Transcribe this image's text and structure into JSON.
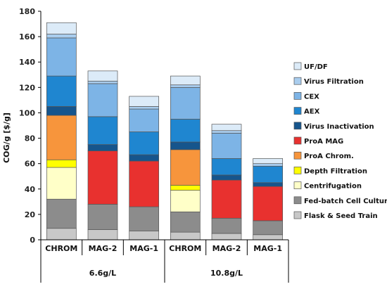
{
  "chart_data": {
    "type": "bar",
    "stacked": true,
    "ylabel": "COG/g [$/g]",
    "ylim": [
      0,
      180
    ],
    "yticks": [
      0,
      20,
      40,
      60,
      80,
      100,
      120,
      140,
      160,
      180
    ],
    "grid": false,
    "legend_position": "right",
    "categories": [
      "CHROM",
      "MAG-2",
      "MAG-1",
      "CHROM",
      "MAG-2",
      "MAG-1"
    ],
    "groups": [
      {
        "label": "6.6g/L",
        "categories": [
          0,
          1,
          2
        ]
      },
      {
        "label": "10.8g/L",
        "categories": [
          3,
          4,
          5
        ]
      }
    ],
    "series": [
      {
        "name": "Flask & Seed Train",
        "color": "#c8c8c8",
        "values": [
          9,
          8,
          7,
          6,
          5,
          4
        ]
      },
      {
        "name": "Fed-batch Cell Culture",
        "color": "#8c8c8c",
        "values": [
          23,
          20,
          19,
          16,
          12,
          11
        ]
      },
      {
        "name": "Centrifugation",
        "color": "#ffffc8",
        "values": [
          25,
          0,
          0,
          17,
          0,
          0
        ]
      },
      {
        "name": "Depth Filtration",
        "color": "#ffff00",
        "values": [
          6,
          0,
          0,
          4,
          0,
          0
        ]
      },
      {
        "name": "ProA Chrom.",
        "color": "#f7953c",
        "values": [
          35,
          0,
          0,
          28,
          0,
          0
        ]
      },
      {
        "name": "ProA MAG",
        "color": "#e8312f",
        "values": [
          0,
          42,
          36,
          0,
          30,
          27
        ]
      },
      {
        "name": "Virus Inactivation",
        "color": "#16558c",
        "values": [
          7,
          5,
          5,
          6,
          4,
          3
        ]
      },
      {
        "name": "AEX",
        "color": "#1f86d0",
        "values": [
          24,
          22,
          18,
          18,
          13,
          13
        ]
      },
      {
        "name": "CEX",
        "color": "#7db4e6",
        "values": [
          30,
          26,
          18,
          25,
          20,
          0
        ]
      },
      {
        "name": "Virus Filtration",
        "color": "#a9cdee",
        "values": [
          3,
          2,
          2,
          2,
          2,
          2
        ]
      },
      {
        "name": "UF/DF",
        "color": "#dcebf8",
        "values": [
          9,
          8,
          8,
          7,
          5,
          4
        ]
      }
    ],
    "legend": [
      "UF/DF",
      "Virus Filtration",
      "CEX",
      "AEX",
      "Virus Inactivation",
      "ProA MAG",
      "ProA Chrom.",
      "Depth Filtration",
      "Centrifugation",
      "Fed-batch Cell Culture",
      "Flask & Seed Train"
    ]
  }
}
